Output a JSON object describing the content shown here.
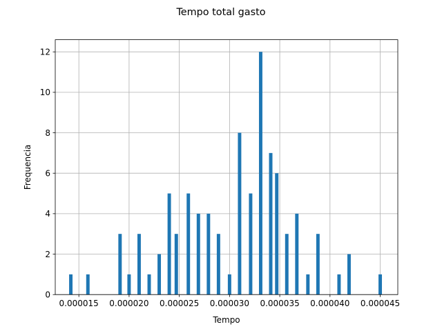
{
  "chart_data": {
    "type": "bar",
    "title": "Tempo total gasto",
    "xlabel": "Tempo",
    "ylabel": "Frequencia",
    "xlim": [
      1.265e-05,
      4.675e-05
    ],
    "ylim": [
      0,
      12.6
    ],
    "grid": true,
    "bar_width": 3.4e-07,
    "bar_color": "#1f77b4",
    "x_ticks": [
      1.5e-05,
      2e-05,
      2.5e-05,
      3e-05,
      3.5e-05,
      4e-05,
      4.5e-05
    ],
    "x_tick_labels": [
      "0.000015",
      "0.000020",
      "0.000025",
      "0.000030",
      "0.000035",
      "0.000040",
      "0.000045"
    ],
    "y_ticks": [
      0,
      2,
      4,
      6,
      8,
      10,
      12
    ],
    "y_tick_labels": [
      "0",
      "2",
      "4",
      "6",
      "8",
      "10",
      "12"
    ],
    "x": [
      1.42e-05,
      1.59e-05,
      1.91e-05,
      2e-05,
      2.1e-05,
      2.2e-05,
      2.3e-05,
      2.4e-05,
      2.47e-05,
      2.59e-05,
      2.69e-05,
      2.79e-05,
      2.89e-05,
      3e-05,
      3.1e-05,
      3.21e-05,
      3.31e-05,
      3.41e-05,
      3.47e-05,
      3.57e-05,
      3.67e-05,
      3.78e-05,
      3.88e-05,
      4.09e-05,
      4.19e-05,
      4.5e-05
    ],
    "values": [
      1,
      1,
      3,
      1,
      3,
      1,
      2,
      5,
      3,
      5,
      4,
      4,
      3,
      1,
      8,
      5,
      12,
      7,
      6,
      3,
      4,
      1,
      3,
      1,
      2,
      1
    ]
  }
}
